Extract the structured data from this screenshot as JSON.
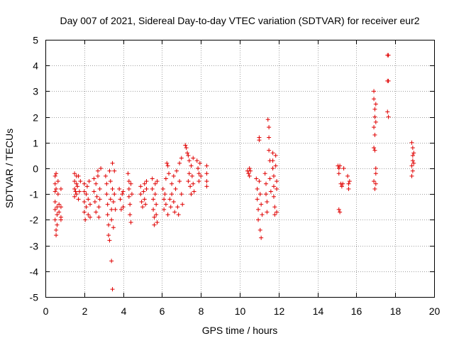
{
  "chart_data": {
    "type": "scatter",
    "title": "Day 007 of 2021, Sidereal Day-to-day VTEC variation (SDTVAR) for receiver eur2",
    "xlabel": "GPS time / hours",
    "ylabel": "SDTVAR / TECUs",
    "xlim": [
      0,
      20
    ],
    "ylim": [
      -5,
      5
    ],
    "x_ticks": [
      "0",
      "2",
      "4",
      "6",
      "8",
      "10",
      "12",
      "14",
      "16",
      "18",
      "20"
    ],
    "y_ticks": [
      "-5",
      "-4",
      "-3",
      "-2",
      "-1",
      "0",
      "1",
      "2",
      "3",
      "4",
      "5"
    ],
    "grid": true,
    "marker": "+",
    "marker_color": "#e00000",
    "series": [
      {
        "name": "SDTVAR",
        "points": [
          [
            0.5,
            -0.3
          ],
          [
            0.5,
            -0.6
          ],
          [
            0.5,
            -0.9
          ],
          [
            0.5,
            -1.3
          ],
          [
            0.5,
            -1.6
          ],
          [
            0.5,
            -2.0
          ],
          [
            0.55,
            -2.4
          ],
          [
            0.55,
            -2.6
          ],
          [
            0.55,
            -0.2
          ],
          [
            0.55,
            -0.8
          ],
          [
            0.6,
            -1.5
          ],
          [
            0.6,
            -1.8
          ],
          [
            0.6,
            -2.2
          ],
          [
            0.65,
            -1.0
          ],
          [
            0.65,
            -0.5
          ],
          [
            0.7,
            -1.4
          ],
          [
            0.7,
            -1.7
          ],
          [
            0.8,
            -0.8
          ],
          [
            0.8,
            -1.5
          ],
          [
            0.8,
            -1.9
          ],
          [
            0.8,
            -2.0
          ],
          [
            1.5,
            -0.2
          ],
          [
            1.5,
            -0.5
          ],
          [
            1.5,
            -0.8
          ],
          [
            1.5,
            -1.1
          ],
          [
            1.55,
            -0.9
          ],
          [
            1.6,
            -0.3
          ],
          [
            1.6,
            -0.6
          ],
          [
            1.6,
            -1.0
          ],
          [
            1.65,
            -0.7
          ],
          [
            1.7,
            -0.3
          ],
          [
            1.7,
            -1.2
          ],
          [
            1.75,
            -0.9
          ],
          [
            1.8,
            -0.5
          ],
          [
            2.0,
            -0.6
          ],
          [
            2.0,
            -0.9
          ],
          [
            2.0,
            -1.3
          ],
          [
            2.0,
            -1.7
          ],
          [
            2.05,
            -2.0
          ],
          [
            2.1,
            -1.5
          ],
          [
            2.1,
            -1.0
          ],
          [
            2.15,
            -0.7
          ],
          [
            2.2,
            -1.2
          ],
          [
            2.2,
            -1.8
          ],
          [
            2.25,
            -0.5
          ],
          [
            2.3,
            -1.4
          ],
          [
            2.3,
            -1.9
          ],
          [
            2.5,
            -0.4
          ],
          [
            2.5,
            -0.9
          ],
          [
            2.55,
            -1.3
          ],
          [
            2.6,
            -1.7
          ],
          [
            2.6,
            -0.6
          ],
          [
            2.65,
            -1.1
          ],
          [
            2.7,
            -0.1
          ],
          [
            2.7,
            -0.3
          ],
          [
            2.75,
            -1.5
          ],
          [
            2.75,
            -1.9
          ],
          [
            2.8,
            -0.8
          ],
          [
            2.8,
            -1.2
          ],
          [
            2.85,
            0.0
          ],
          [
            3.1,
            -0.3
          ],
          [
            3.15,
            -0.6
          ],
          [
            3.15,
            -1.0
          ],
          [
            3.2,
            -1.4
          ],
          [
            3.2,
            -1.8
          ],
          [
            3.25,
            -2.2
          ],
          [
            3.25,
            -2.6
          ],
          [
            3.3,
            -2.8
          ],
          [
            3.3,
            -0.1
          ],
          [
            3.35,
            -0.5
          ],
          [
            3.35,
            -1.2
          ],
          [
            3.4,
            -1.6
          ],
          [
            3.4,
            -2.0
          ],
          [
            3.45,
            0.2
          ],
          [
            3.45,
            -0.8
          ],
          [
            3.5,
            -1.3
          ],
          [
            3.5,
            -2.3
          ],
          [
            3.55,
            -0.1
          ],
          [
            3.55,
            -1.0
          ],
          [
            3.6,
            -1.6
          ],
          [
            3.4,
            -3.6
          ],
          [
            3.45,
            -4.7
          ],
          [
            3.8,
            -0.8
          ],
          [
            3.85,
            -1.2
          ],
          [
            3.9,
            -1.6
          ],
          [
            3.95,
            -1.0
          ],
          [
            4.0,
            -0.9
          ],
          [
            4.0,
            -1.5
          ],
          [
            4.25,
            -0.2
          ],
          [
            4.3,
            -0.5
          ],
          [
            4.3,
            -0.8
          ],
          [
            4.3,
            -1.1
          ],
          [
            4.35,
            -1.4
          ],
          [
            4.35,
            -1.8
          ],
          [
            4.4,
            -2.1
          ],
          [
            4.4,
            -0.6
          ],
          [
            4.45,
            -1.0
          ],
          [
            4.9,
            -0.7
          ],
          [
            4.9,
            -1.0
          ],
          [
            4.95,
            -1.3
          ],
          [
            5.0,
            -1.5
          ],
          [
            5.05,
            -0.9
          ],
          [
            5.1,
            -0.6
          ],
          [
            5.1,
            -1.2
          ],
          [
            5.15,
            -1.4
          ],
          [
            5.2,
            -0.8
          ],
          [
            5.2,
            -0.5
          ],
          [
            5.5,
            -0.4
          ],
          [
            5.5,
            -0.8
          ],
          [
            5.55,
            -1.2
          ],
          [
            5.55,
            -1.6
          ],
          [
            5.6,
            -1.9
          ],
          [
            5.6,
            -2.2
          ],
          [
            5.65,
            -0.6
          ],
          [
            5.65,
            -1.0
          ],
          [
            5.7,
            -1.4
          ],
          [
            5.7,
            -1.8
          ],
          [
            5.75,
            -0.5
          ],
          [
            5.75,
            -2.1
          ],
          [
            6.05,
            -0.8
          ],
          [
            6.1,
            -1.2
          ],
          [
            6.1,
            -1.6
          ],
          [
            6.15,
            -1.0
          ],
          [
            6.2,
            -0.4
          ],
          [
            6.2,
            -1.4
          ],
          [
            6.25,
            0.2
          ],
          [
            6.3,
            0.1
          ],
          [
            6.3,
            -1.8
          ],
          [
            6.35,
            -0.2
          ],
          [
            6.4,
            -1.2
          ],
          [
            6.45,
            -1.5
          ],
          [
            6.5,
            -0.6
          ],
          [
            6.5,
            -1.0
          ],
          [
            6.6,
            -0.3
          ],
          [
            6.6,
            -1.3
          ],
          [
            6.65,
            -1.7
          ],
          [
            6.7,
            -0.8
          ],
          [
            6.75,
            -0.1
          ],
          [
            6.8,
            -1.5
          ],
          [
            6.85,
            -1.8
          ],
          [
            6.9,
            0.2
          ],
          [
            6.9,
            -0.5
          ],
          [
            7.0,
            0.4
          ],
          [
            7.0,
            -1.0
          ],
          [
            7.05,
            -1.4
          ],
          [
            7.2,
            0.9
          ],
          [
            7.25,
            0.8
          ],
          [
            7.3,
            0.6
          ],
          [
            7.35,
            0.5
          ],
          [
            7.35,
            -0.5
          ],
          [
            7.4,
            0.3
          ],
          [
            7.4,
            -0.2
          ],
          [
            7.45,
            -0.7
          ],
          [
            7.5,
            0.1
          ],
          [
            7.5,
            -1.0
          ],
          [
            7.55,
            -0.3
          ],
          [
            7.6,
            0.4
          ],
          [
            7.6,
            -0.6
          ],
          [
            7.65,
            -0.9
          ],
          [
            7.8,
            0.3
          ],
          [
            7.85,
            0.0
          ],
          [
            7.9,
            -0.2
          ],
          [
            7.9,
            -0.5
          ],
          [
            7.95,
            0.2
          ],
          [
            8.0,
            -0.3
          ],
          [
            8.3,
            0.1
          ],
          [
            8.3,
            -0.2
          ],
          [
            8.3,
            -0.5
          ],
          [
            8.3,
            -0.7
          ],
          [
            10.4,
            -0.1
          ],
          [
            10.45,
            -0.2
          ],
          [
            10.5,
            0.0
          ],
          [
            10.5,
            -0.3
          ],
          [
            10.55,
            -0.1
          ],
          [
            10.85,
            -0.4
          ],
          [
            10.9,
            -0.8
          ],
          [
            10.9,
            -1.2
          ],
          [
            10.95,
            -1.6
          ],
          [
            10.95,
            -2.0
          ],
          [
            11.0,
            1.2
          ],
          [
            11.0,
            1.1
          ],
          [
            11.0,
            -0.5
          ],
          [
            11.05,
            -1.0
          ],
          [
            11.05,
            -2.4
          ],
          [
            11.1,
            -1.4
          ],
          [
            11.1,
            -2.7
          ],
          [
            11.15,
            -1.8
          ],
          [
            11.3,
            -0.2
          ],
          [
            11.35,
            -0.6
          ],
          [
            11.35,
            -1.0
          ],
          [
            11.4,
            -1.3
          ],
          [
            11.4,
            -1.7
          ],
          [
            11.45,
            1.9
          ],
          [
            11.5,
            1.6
          ],
          [
            11.5,
            1.2
          ],
          [
            11.5,
            0.7
          ],
          [
            11.55,
            0.3
          ],
          [
            11.55,
            -0.4
          ],
          [
            11.6,
            -0.9
          ],
          [
            11.7,
            0.6
          ],
          [
            11.7,
            0.3
          ],
          [
            11.7,
            0.0
          ],
          [
            11.75,
            -0.3
          ],
          [
            11.75,
            -0.7
          ],
          [
            11.75,
            -1.1
          ],
          [
            11.8,
            -1.5
          ],
          [
            11.8,
            -1.8
          ],
          [
            11.85,
            0.5
          ],
          [
            11.85,
            0.1
          ],
          [
            11.9,
            -0.5
          ],
          [
            11.9,
            -0.8
          ],
          [
            11.9,
            -1.7
          ],
          [
            15.05,
            0.1
          ],
          [
            15.1,
            0.0
          ],
          [
            15.1,
            -0.2
          ],
          [
            15.15,
            0.1
          ],
          [
            15.2,
            -0.6
          ],
          [
            15.25,
            -0.7
          ],
          [
            15.3,
            -0.6
          ],
          [
            15.35,
            0.0
          ],
          [
            15.1,
            -1.6
          ],
          [
            15.15,
            -1.7
          ],
          [
            15.55,
            -0.3
          ],
          [
            15.6,
            -0.6
          ],
          [
            15.6,
            -0.8
          ],
          [
            15.65,
            -0.5
          ],
          [
            16.9,
            3.0
          ],
          [
            16.9,
            2.7
          ],
          [
            16.95,
            2.3
          ],
          [
            16.95,
            2.0
          ],
          [
            16.9,
            1.6
          ],
          [
            16.95,
            1.3
          ],
          [
            16.9,
            0.8
          ],
          [
            16.95,
            0.7
          ],
          [
            17.0,
            2.5
          ],
          [
            17.0,
            1.8
          ],
          [
            17.0,
            0.0
          ],
          [
            17.0,
            -0.2
          ],
          [
            16.9,
            -0.5
          ],
          [
            16.95,
            -0.8
          ],
          [
            17.0,
            -0.6
          ],
          [
            17.6,
            4.4
          ],
          [
            17.65,
            4.4
          ],
          [
            17.6,
            3.4
          ],
          [
            17.65,
            3.4
          ],
          [
            17.6,
            2.2
          ],
          [
            17.65,
            2.0
          ],
          [
            18.85,
            1.0
          ],
          [
            18.9,
            0.8
          ],
          [
            18.9,
            0.5
          ],
          [
            18.9,
            0.3
          ],
          [
            18.85,
            0.1
          ],
          [
            18.9,
            -0.1
          ],
          [
            18.85,
            -0.3
          ],
          [
            18.95,
            0.6
          ],
          [
            18.95,
            0.2
          ]
        ]
      }
    ]
  }
}
